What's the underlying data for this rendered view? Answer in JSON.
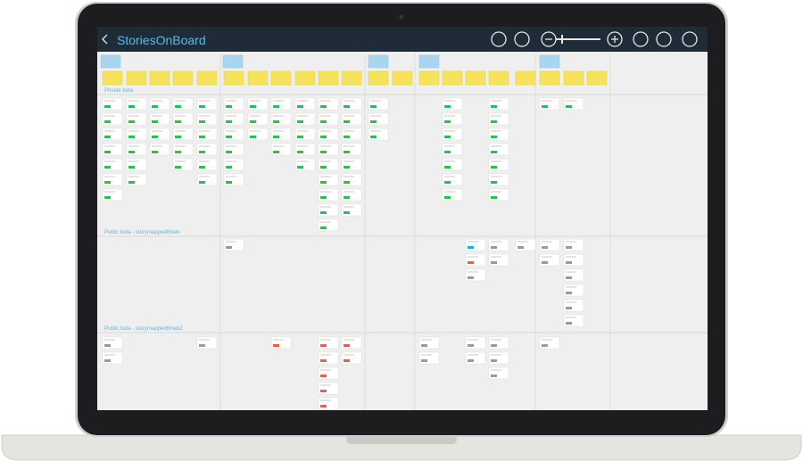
{
  "header": {
    "title": "StoriesOnBoard"
  },
  "releases": [
    {
      "label": "Private beta"
    },
    {
      "label": "Public beta - storymapped6mek"
    },
    {
      "label": "Public beta - storymapped6mek2"
    }
  ]
}
